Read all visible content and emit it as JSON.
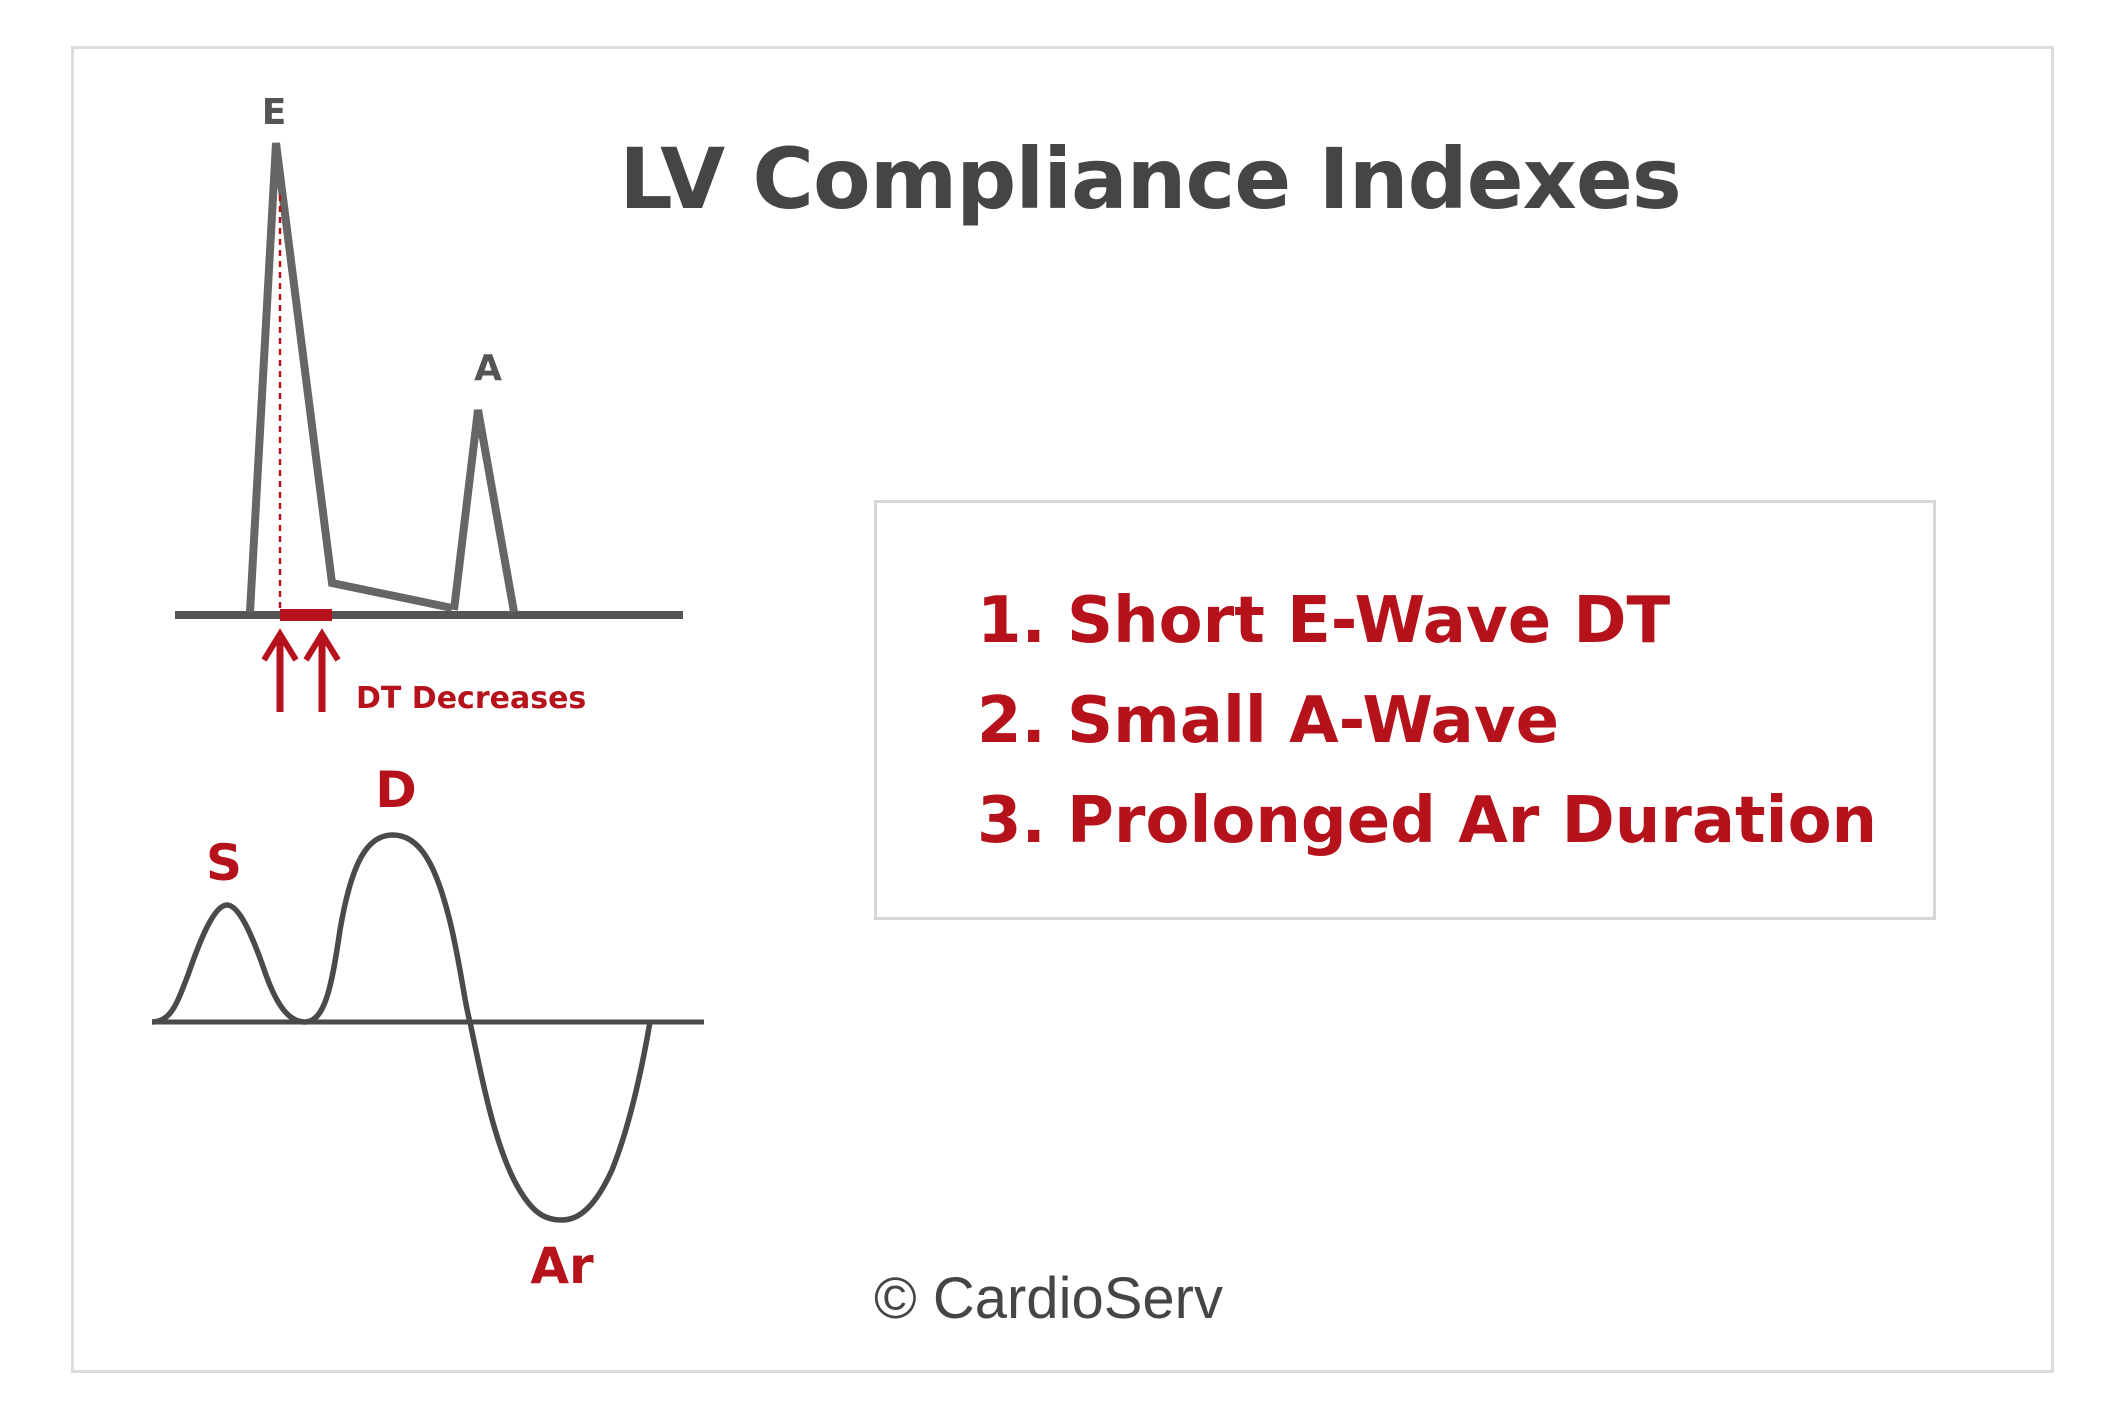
{
  "title": "LV Compliance Indexes",
  "mitral_inflow": {
    "e_label": "E",
    "a_label": "A",
    "dt_label": "DT Decreases"
  },
  "pulmonary_vein": {
    "s_label": "S",
    "d_label": "D",
    "ar_label": "Ar"
  },
  "indexes": [
    {
      "number": "1.",
      "text": "Short E-Wave DT"
    },
    {
      "number": "2.",
      "text": "Small A-Wave"
    },
    {
      "number": "3.",
      "text": "Prolonged Ar Duration"
    }
  ],
  "copyright": "© CardioServ",
  "colors": {
    "accent_red": "#b5121b",
    "waveform_gray": "#555555",
    "title_gray": "#454545",
    "border_gray": "#dcdcdc"
  }
}
